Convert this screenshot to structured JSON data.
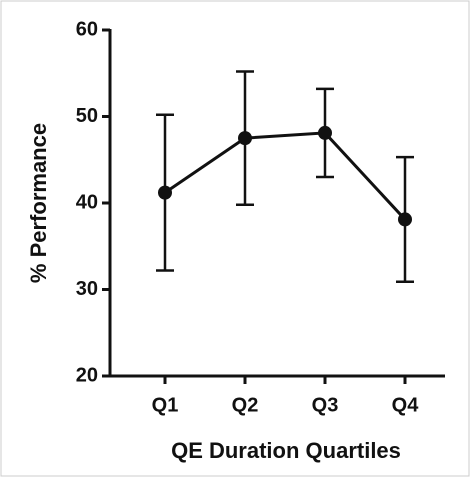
{
  "chart_data": {
    "type": "line",
    "x_label": "QE Duration Quartiles",
    "y_label": "% Performance",
    "categories": [
      "Q1",
      "Q2",
      "Q3",
      "Q4"
    ],
    "series": [
      {
        "color": "#111111",
        "values": [
          41.2,
          47.5,
          48.1,
          38.1
        ],
        "errors": [
          9.0,
          7.7,
          5.1,
          7.2
        ]
      }
    ],
    "ylim": [
      20,
      60
    ],
    "yticks": [
      20,
      30,
      40,
      50,
      60
    ]
  }
}
